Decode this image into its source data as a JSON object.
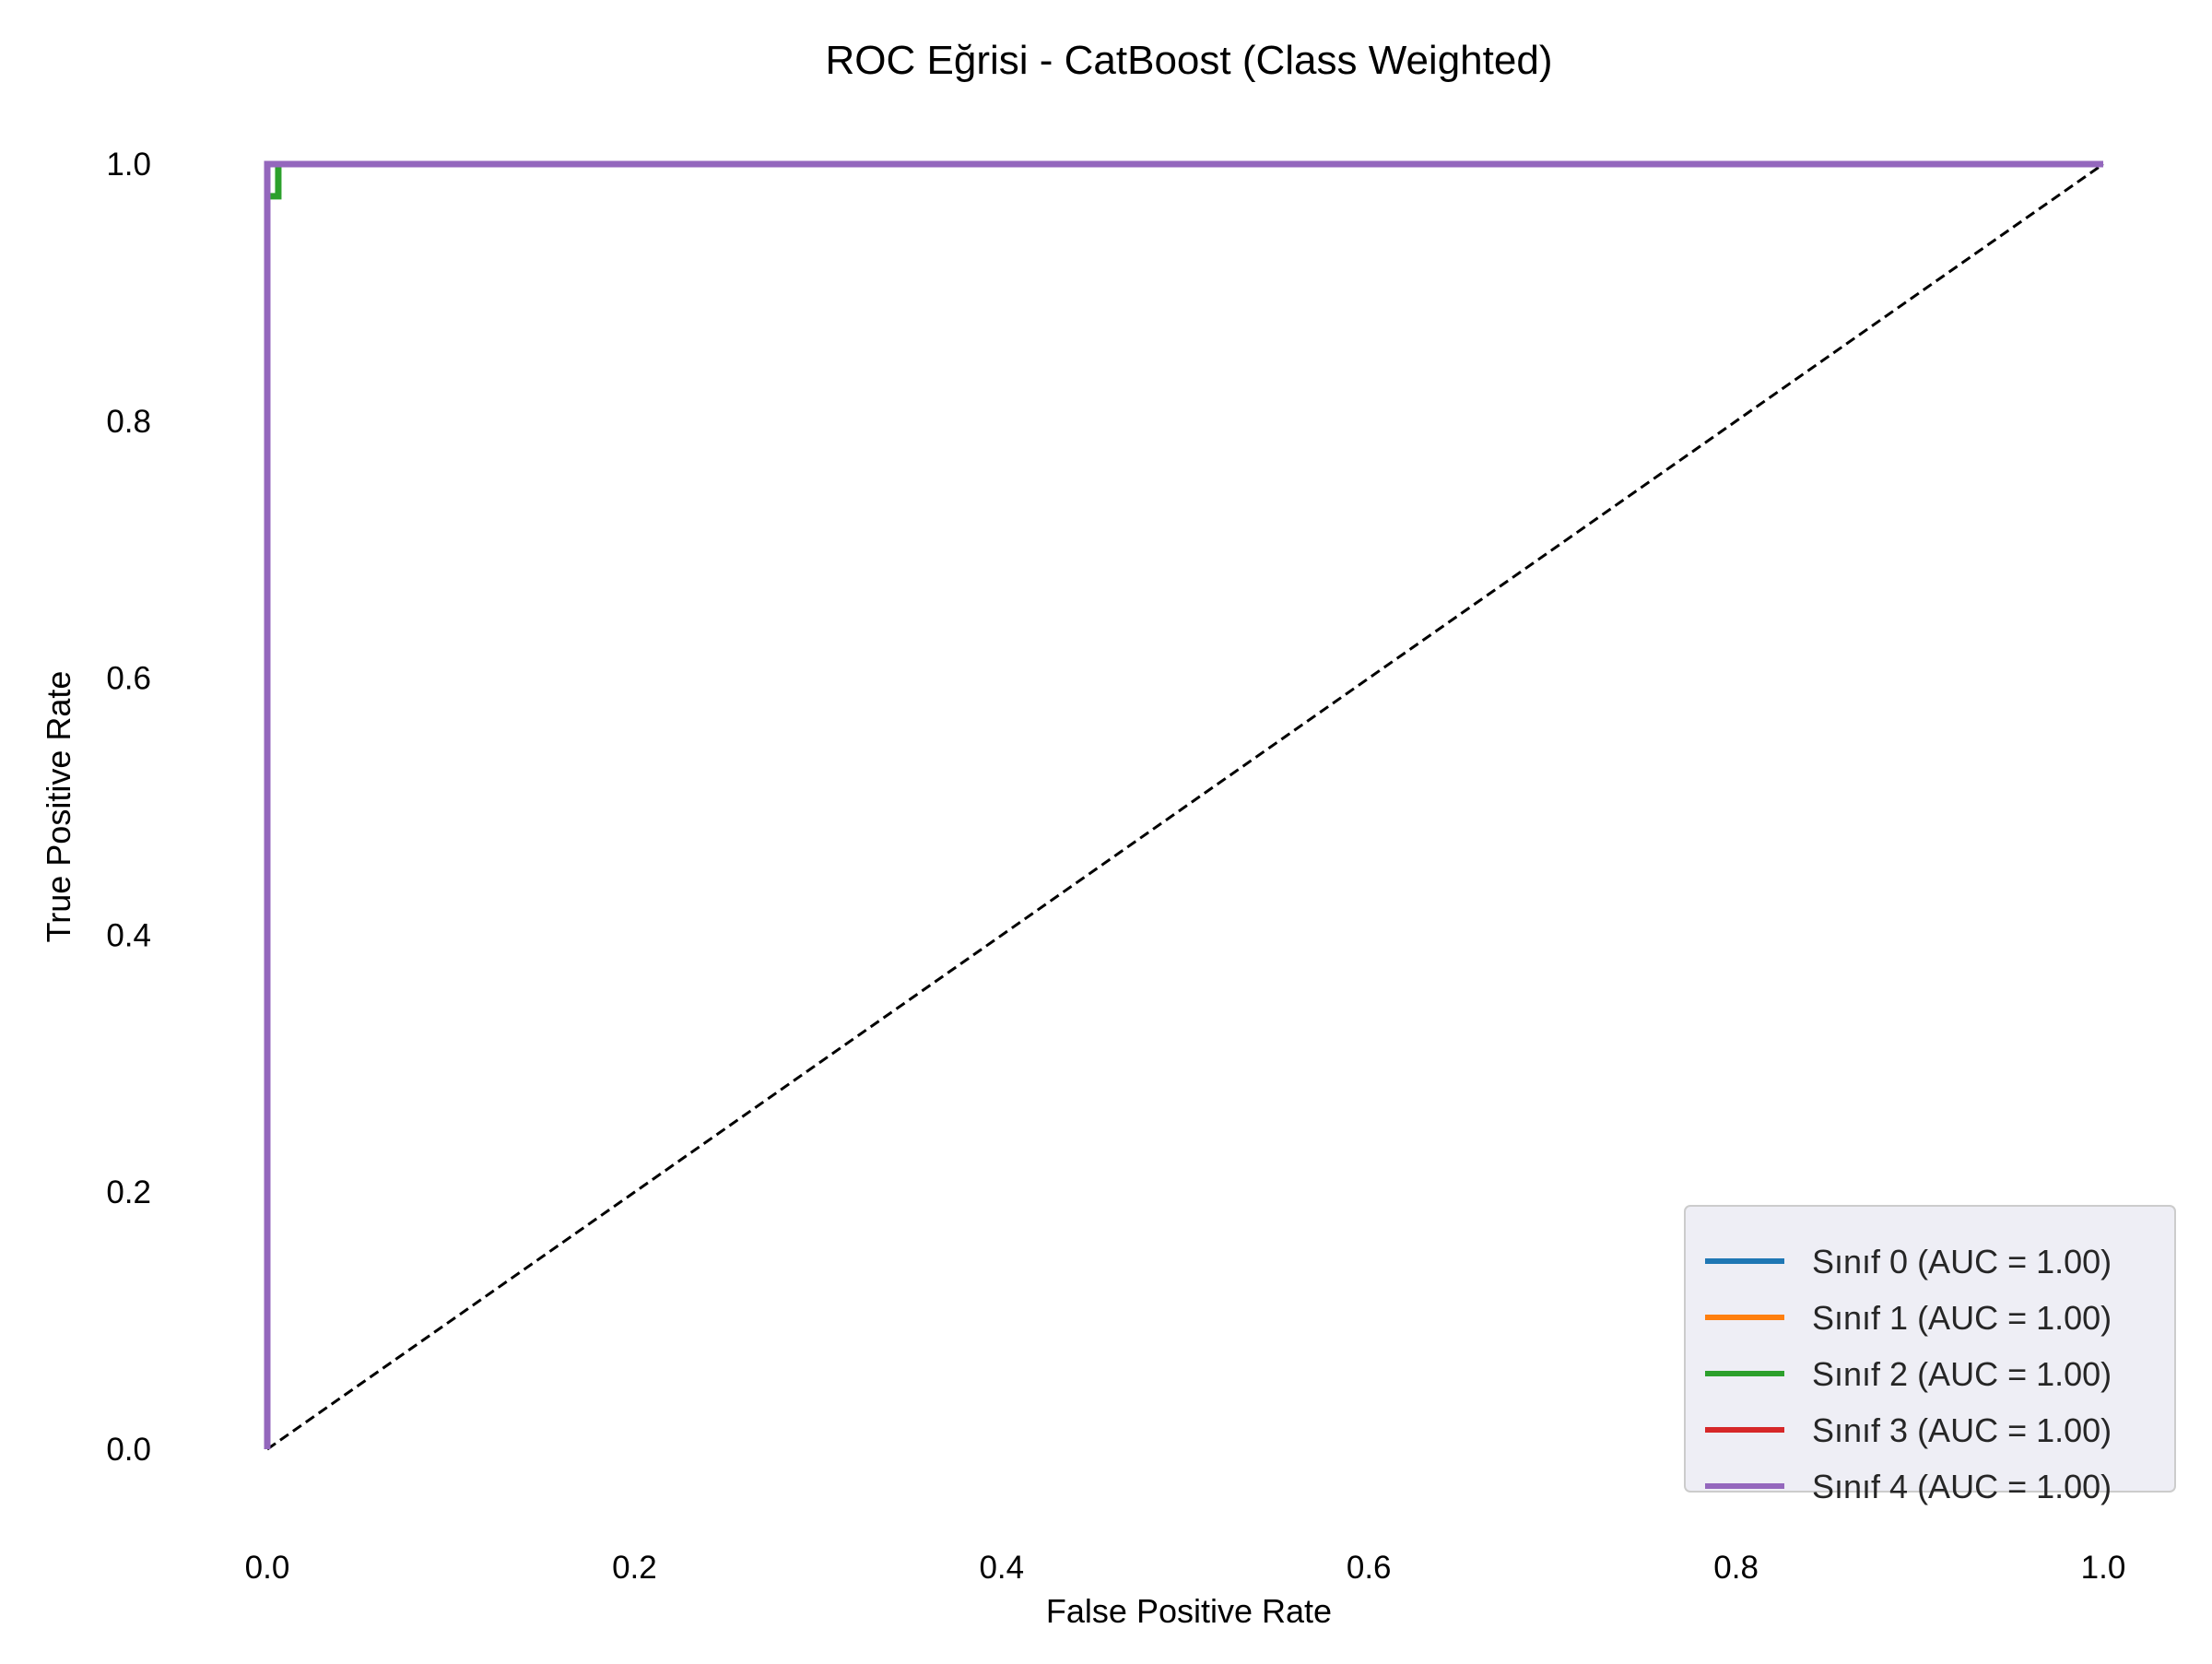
{
  "chart_data": {
    "type": "line",
    "title": "ROC Eğrisi - CatBoost (Class Weighted)",
    "xlabel": "False Positive Rate",
    "ylabel": "True Positive Rate",
    "xlim": [
      0.0,
      1.0
    ],
    "ylim": [
      0.0,
      1.0
    ],
    "x_ticks": [
      "0.0",
      "0.2",
      "0.4",
      "0.6",
      "0.8",
      "1.0"
    ],
    "y_ticks": [
      "0.0",
      "0.2",
      "0.4",
      "0.6",
      "0.8",
      "1.0"
    ],
    "grid": false,
    "legend_position": "lower-right",
    "reference_line": {
      "name": "",
      "x": [
        0.0,
        1.0
      ],
      "y": [
        0.0,
        1.0
      ],
      "style": "dashed",
      "color": "#000000"
    },
    "series": [
      {
        "name": "Sınıf 0 (AUC = 1.00)",
        "color": "#1f77b4",
        "x": [
          0.0,
          0.0,
          1.0
        ],
        "y": [
          0.0,
          1.0,
          1.0
        ]
      },
      {
        "name": "Sınıf 1 (AUC = 1.00)",
        "color": "#ff7f0e",
        "x": [
          0.0,
          0.0,
          1.0
        ],
        "y": [
          0.0,
          1.0,
          1.0
        ]
      },
      {
        "name": "Sınıf 2 (AUC = 1.00)",
        "color": "#2ca02c",
        "x": [
          0.0,
          0.0,
          0.006,
          0.006,
          1.0
        ],
        "y": [
          0.0,
          0.975,
          0.975,
          1.0,
          1.0
        ]
      },
      {
        "name": "Sınıf 3 (AUC = 1.00)",
        "color": "#d62728",
        "x": [
          0.0,
          0.0,
          1.0
        ],
        "y": [
          0.0,
          1.0,
          1.0
        ]
      },
      {
        "name": "Sınıf 4 (AUC = 1.00)",
        "color": "#9467bd",
        "x": [
          0.0,
          0.0,
          1.0
        ],
        "y": [
          0.0,
          1.0,
          1.0
        ]
      }
    ]
  }
}
